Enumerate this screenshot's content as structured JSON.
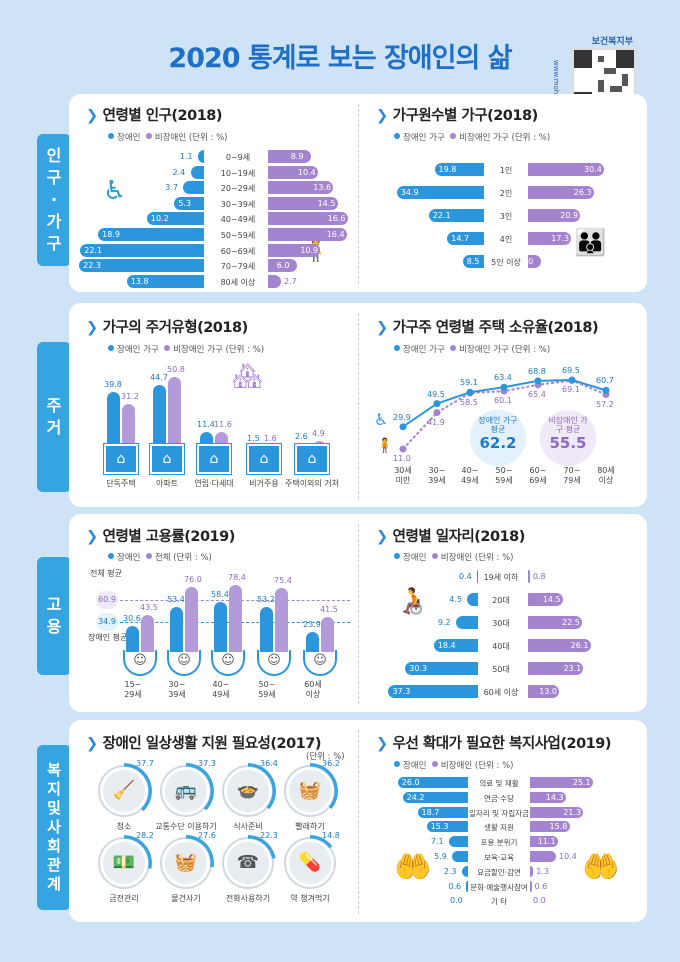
{
  "title": "2020 통계로 보는 장애인의 삶",
  "ministry": "보건복지부",
  "url": "www.mohw.go.kr",
  "colors": {
    "disabled": "#2c96dd",
    "non_disabled": "#a584cf",
    "sidebar": "#35a4e0",
    "background": "#cfe3f6"
  },
  "sections": [
    "인구·가구",
    "주거",
    "고용",
    "복지및사회관계"
  ],
  "legend_unit": "(단위 : %)",
  "chart_data": [
    {
      "id": "age_population",
      "type": "bar",
      "title": "연령별 인구(2018)",
      "legend": [
        "장애인",
        "비장애인"
      ],
      "categories": [
        "0~9세",
        "10~19세",
        "20~29세",
        "30~39세",
        "40~49세",
        "50~59세",
        "60~69세",
        "70~79세",
        "80세 이상"
      ],
      "series": [
        {
          "name": "장애인",
          "values": [
            1.1,
            2.4,
            3.7,
            5.3,
            10.2,
            18.9,
            22.1,
            22.3,
            13.8
          ]
        },
        {
          "name": "비장애인",
          "values": [
            8.9,
            10.4,
            13.6,
            14.5,
            16.6,
            16.4,
            10.9,
            6.0,
            2.7
          ]
        }
      ]
    },
    {
      "id": "household_size",
      "type": "bar",
      "title": "가구원수별 가구(2018)",
      "legend": [
        "장애인 가구",
        "비장애인 가구"
      ],
      "categories": [
        "1인",
        "2인",
        "3인",
        "4인",
        "5인 이상"
      ],
      "series": [
        {
          "name": "장애인 가구",
          "values": [
            19.8,
            34.9,
            22.1,
            14.7,
            8.5
          ]
        },
        {
          "name": "비장애인 가구",
          "values": [
            30.4,
            26.3,
            20.9,
            17.3,
            5.0
          ]
        }
      ]
    },
    {
      "id": "housing_type",
      "type": "bar",
      "title": "가구의 주거유형(2018)",
      "legend": [
        "장애인 가구",
        "비장애인 가구"
      ],
      "categories": [
        "단독주택",
        "아파트",
        "연립·다세대",
        "비거주용",
        "주택이외의 거처"
      ],
      "series": [
        {
          "name": "장애인 가구",
          "values": [
            39.8,
            44.7,
            11.4,
            1.5,
            2.6
          ]
        },
        {
          "name": "비장애인 가구",
          "values": [
            31.2,
            50.8,
            11.6,
            1.6,
            4.9
          ]
        }
      ]
    },
    {
      "id": "home_ownership",
      "type": "line",
      "title": "가구주 연령별 주택 소유율(2018)",
      "legend": [
        "장애인 가구",
        "비장애인 가구"
      ],
      "categories": [
        "30세 미만",
        "30~39세",
        "40~49세",
        "50~59세",
        "60~69세",
        "70~79세",
        "80세 이상"
      ],
      "series": [
        {
          "name": "장애인 가구",
          "values": [
            29.9,
            49.5,
            59.1,
            63.4,
            68.8,
            69.5,
            60.7
          ]
        },
        {
          "name": "비장애인 가구",
          "values": [
            11.0,
            41.9,
            58.5,
            60.1,
            65.4,
            69.1,
            57.2
          ]
        }
      ],
      "averages": [
        {
          "label": "장애인 가구 평균",
          "value": "62.2"
        },
        {
          "label": "비장애인 가구 평균",
          "value": "55.5"
        }
      ]
    },
    {
      "id": "employment_rate",
      "type": "bar",
      "title": "연령별 고용률(2019)",
      "legend": [
        "장애인",
        "전체"
      ],
      "categories": [
        "15~29세",
        "30~39세",
        "40~49세",
        "50~59세",
        "60세 이상"
      ],
      "series": [
        {
          "name": "장애인",
          "values": [
            30.6,
            53.4,
            58.4,
            53.2,
            23.9
          ]
        },
        {
          "name": "전체",
          "values": [
            43.5,
            76.0,
            78.4,
            75.4,
            41.5
          ]
        }
      ],
      "averages": [
        {
          "label": "전체 평균",
          "value": "60.9"
        },
        {
          "label": "장애인 평균",
          "value": "34.9"
        }
      ]
    },
    {
      "id": "jobs_by_age",
      "type": "bar",
      "title": "연령별 일자리(2018)",
      "legend": [
        "장애인",
        "비장애인"
      ],
      "categories": [
        "19세 이하",
        "20대",
        "30대",
        "40대",
        "50대",
        "60세 이상"
      ],
      "series": [
        {
          "name": "장애인",
          "values": [
            0.4,
            4.5,
            9.2,
            18.4,
            30.3,
            37.3
          ]
        },
        {
          "name": "비장애인",
          "values": [
            0.8,
            14.5,
            22.5,
            26.1,
            23.1,
            13.0
          ]
        }
      ]
    },
    {
      "id": "daily_support",
      "type": "bar",
      "title": "장애인 일상생활 지원 필요성(2017)",
      "unit": "(단위 : %)",
      "categories": [
        "청소",
        "교통수단 이용하기",
        "식사준비",
        "빨래하기",
        "금전관리",
        "물건사기",
        "전화사용하기",
        "약 챙겨먹기"
      ],
      "values": [
        37.7,
        37.3,
        36.4,
        36.2,
        28.2,
        27.6,
        22.3,
        14.8
      ]
    },
    {
      "id": "welfare_priority",
      "type": "bar",
      "title": "우선 확대가 필요한 복지사업(2019)",
      "legend": [
        "장애인",
        "비장애인"
      ],
      "categories": [
        "의료 및 재활",
        "연금·수당",
        "일자리 및 자립자금",
        "생활 지원",
        "포용 분위기",
        "보육·교육",
        "요금할인·감면",
        "문화·예술행사참여",
        "기 타"
      ],
      "series": [
        {
          "name": "장애인",
          "values": [
            26.0,
            24.2,
            18.7,
            15.3,
            7.1,
            5.9,
            2.3,
            0.6,
            0.0
          ]
        },
        {
          "name": "비장애인",
          "values": [
            25.1,
            14.3,
            21.3,
            15.8,
            11.1,
            10.4,
            1.3,
            0.6,
            0.0
          ]
        }
      ]
    }
  ]
}
